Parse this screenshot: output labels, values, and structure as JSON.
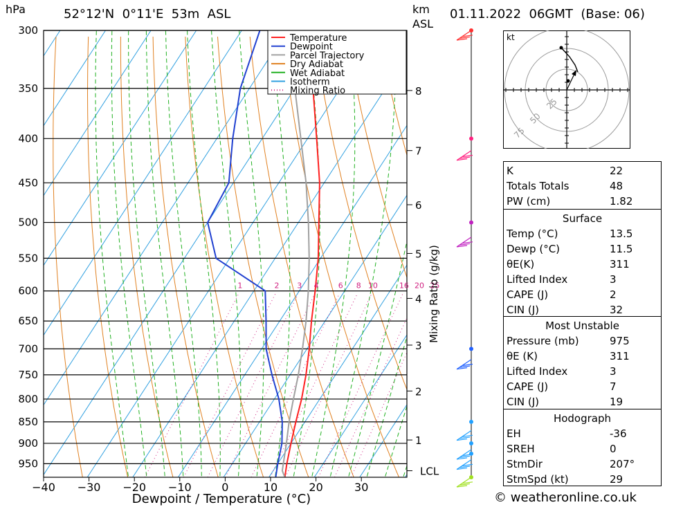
{
  "header": {
    "pressure_unit": "hPa",
    "location": "52°12'N  0°11'E  53m  ASL",
    "km_label": "km",
    "asl_label": "ASL",
    "datetime": "01.11.2022  06GMT  (Base: 06)"
  },
  "copyright": "© weatheronline.co.uk",
  "legend": [
    {
      "label": "Temperature",
      "color": "#ff2020",
      "style": "solid"
    },
    {
      "label": "Dewpoint",
      "color": "#2040d0",
      "style": "solid"
    },
    {
      "label": "Parcel Trajectory",
      "color": "#a0a0a0",
      "style": "solid"
    },
    {
      "label": "Dry Adiabat",
      "color": "#e08020",
      "style": "solid"
    },
    {
      "label": "Wet Adiabat",
      "color": "#20b020",
      "style": "solid"
    },
    {
      "label": "Isotherm",
      "color": "#30a0e0",
      "style": "solid"
    },
    {
      "label": "Mixing Ratio",
      "color": "#d02080",
      "style": "dotted"
    }
  ],
  "hodograph": {
    "unit_label": "kt",
    "ring_labels": [
      "25",
      "50",
      "75"
    ]
  },
  "indices": {
    "basic": [
      {
        "label": "K",
        "value": "22"
      },
      {
        "label": "Totals Totals",
        "value": "48"
      },
      {
        "label": "PW (cm)",
        "value": "1.82"
      }
    ],
    "surface": {
      "title": "Surface",
      "rows": [
        {
          "label": "Temp (°C)",
          "value": "13.5"
        },
        {
          "label": "Dewp (°C)",
          "value": "11.5"
        },
        {
          "label": "θE(K)",
          "value": "311"
        },
        {
          "label": "Lifted Index",
          "value": "3"
        },
        {
          "label": "CAPE (J)",
          "value": "2"
        },
        {
          "label": "CIN (J)",
          "value": "32"
        }
      ]
    },
    "most_unstable": {
      "title": "Most Unstable",
      "rows": [
        {
          "label": "Pressure (mb)",
          "value": "975"
        },
        {
          "label": "θE (K)",
          "value": "311"
        },
        {
          "label": "Lifted Index",
          "value": "3"
        },
        {
          "label": "CAPE (J)",
          "value": "7"
        },
        {
          "label": "CIN (J)",
          "value": "19"
        }
      ]
    },
    "hodograph_box": {
      "title": "Hodograph",
      "rows": [
        {
          "label": "EH",
          "value": "-36"
        },
        {
          "label": "SREH",
          "value": "0"
        },
        {
          "label": "StmDir",
          "value": "207°"
        },
        {
          "label": "StmSpd (kt)",
          "value": "29"
        }
      ]
    }
  },
  "chart_data": {
    "type": "line",
    "title": "",
    "xlabel": "Dewpoint / Temperature (°C)",
    "ylabel": "hPa",
    "right_label": "Mixing Ratio (g/kg)",
    "x_ticks": [
      -40,
      -30,
      -20,
      -10,
      0,
      10,
      20,
      30
    ],
    "x_tick_labels": [
      "−40",
      "−30",
      "−20",
      "−10",
      "0",
      "10",
      "20",
      "30"
    ],
    "xlim": [
      -40,
      40
    ],
    "pressure_levels": [
      300,
      350,
      400,
      450,
      500,
      550,
      600,
      650,
      700,
      750,
      800,
      850,
      900,
      950
    ],
    "ylim": [
      300,
      985
    ],
    "y_scale": "log",
    "height_km_ticks": [
      {
        "label": "8",
        "pressure": 352
      },
      {
        "label": "7",
        "pressure": 413
      },
      {
        "label": "6",
        "pressure": 477
      },
      {
        "label": "5",
        "pressure": 543
      },
      {
        "label": "4",
        "pressure": 612
      },
      {
        "label": "3",
        "pressure": 693
      },
      {
        "label": "2",
        "pressure": 783
      },
      {
        "label": "1",
        "pressure": 892
      },
      {
        "label": "LCL",
        "pressure": 968
      }
    ],
    "mixing_ratio_labels": [
      "1",
      "2",
      "3",
      "4",
      "6",
      "8",
      "10",
      "16",
      "20",
      "25"
    ],
    "series": [
      {
        "name": "Temperature",
        "color": "#ff2020",
        "points": [
          {
            "p": 985,
            "t": 13.5
          },
          {
            "p": 950,
            "t": 12.0
          },
          {
            "p": 900,
            "t": 10.0
          },
          {
            "p": 850,
            "t": 8.0
          },
          {
            "p": 800,
            "t": 6.0
          },
          {
            "p": 750,
            "t": 3.5
          },
          {
            "p": 700,
            "t": 0.5
          },
          {
            "p": 650,
            "t": -3.0
          },
          {
            "p": 600,
            "t": -6.5
          },
          {
            "p": 550,
            "t": -10.5
          },
          {
            "p": 500,
            "t": -15.5
          },
          {
            "p": 450,
            "t": -21.0
          },
          {
            "p": 400,
            "t": -28.0
          },
          {
            "p": 350,
            "t": -36.0
          },
          {
            "p": 300,
            "t": -44.5
          }
        ]
      },
      {
        "name": "Dewpoint",
        "color": "#2040d0",
        "points": [
          {
            "p": 985,
            "t": 11.5
          },
          {
            "p": 950,
            "t": 10.0
          },
          {
            "p": 900,
            "t": 8.0
          },
          {
            "p": 850,
            "t": 5.0
          },
          {
            "p": 800,
            "t": 1.0
          },
          {
            "p": 750,
            "t": -4.0
          },
          {
            "p": 700,
            "t": -9.0
          },
          {
            "p": 650,
            "t": -13.0
          },
          {
            "p": 600,
            "t": -17.5
          },
          {
            "p": 550,
            "t": -33.0
          },
          {
            "p": 500,
            "t": -40.0
          },
          {
            "p": 450,
            "t": -41.0
          },
          {
            "p": 400,
            "t": -46.5
          },
          {
            "p": 350,
            "t": -52.0
          },
          {
            "p": 300,
            "t": -56.0
          }
        ]
      },
      {
        "name": "Parcel Trajectory",
        "color": "#a0a0a0",
        "points": [
          {
            "p": 985,
            "t": 13.5
          },
          {
            "p": 968,
            "t": 12.0
          },
          {
            "p": 900,
            "t": 9.0
          },
          {
            "p": 850,
            "t": 6.5
          },
          {
            "p": 800,
            "t": 4.2
          },
          {
            "p": 750,
            "t": 1.8
          },
          {
            "p": 700,
            "t": -1.0
          },
          {
            "p": 650,
            "t": -4.2
          },
          {
            "p": 600,
            "t": -8.0
          },
          {
            "p": 550,
            "t": -12.5
          },
          {
            "p": 500,
            "t": -17.8
          },
          {
            "p": 450,
            "t": -24.0
          },
          {
            "p": 400,
            "t": -31.5
          },
          {
            "p": 350,
            "t": -40.0
          },
          {
            "p": 300,
            "t": -50.0
          }
        ]
      }
    ],
    "wind_dots": [
      {
        "p": 300,
        "color": "#ff3030"
      },
      {
        "p": 400,
        "color": "#ff2080"
      },
      {
        "p": 500,
        "color": "#c020c0"
      },
      {
        "p": 700,
        "color": "#2060ff"
      },
      {
        "p": 850,
        "color": "#20a0ff"
      },
      {
        "p": 900,
        "color": "#20a0ff"
      },
      {
        "p": 925,
        "color": "#20a0ff"
      },
      {
        "p": 985,
        "color": "#a0e020"
      }
    ],
    "grid": true
  }
}
